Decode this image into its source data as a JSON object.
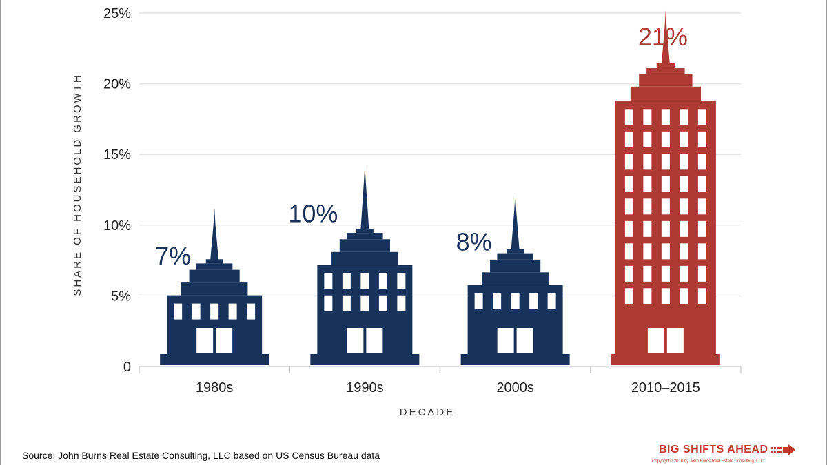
{
  "chart_data": {
    "type": "bar",
    "title": "",
    "xlabel": "DECADE",
    "ylabel": "SHARE OF HOUSEHOLD GROWTH",
    "categories": [
      "1980s",
      "1990s",
      "2000s",
      "2010–2015"
    ],
    "values": [
      7,
      10,
      8,
      21
    ],
    "value_labels": [
      "7%",
      "10%",
      "8%",
      "21%"
    ],
    "ylim": [
      0,
      25
    ],
    "yticks": [
      0,
      5,
      10,
      15,
      20,
      25
    ],
    "ytick_labels": [
      "0",
      "5%",
      "10%",
      "15%",
      "20%",
      "25%"
    ],
    "grid": true,
    "bar_style": "building",
    "colors": [
      "#17325b",
      "#17325b",
      "#17325b",
      "#ad3a33"
    ]
  },
  "footer": {
    "source": "Source: John Burns Real Estate Consulting, LLC based on US Census Bureau data",
    "brand": "BIG SHIFTS AHEAD",
    "copyright": "Copyright© 2016 by John Burns Real Estate Consulting, LLC"
  },
  "colors": {
    "navy": "#17325b",
    "red": "#ad3a33",
    "brand_red": "#c0392b",
    "grid": "#e3e3e3"
  },
  "icons": {
    "brand": "arrow-icon"
  }
}
